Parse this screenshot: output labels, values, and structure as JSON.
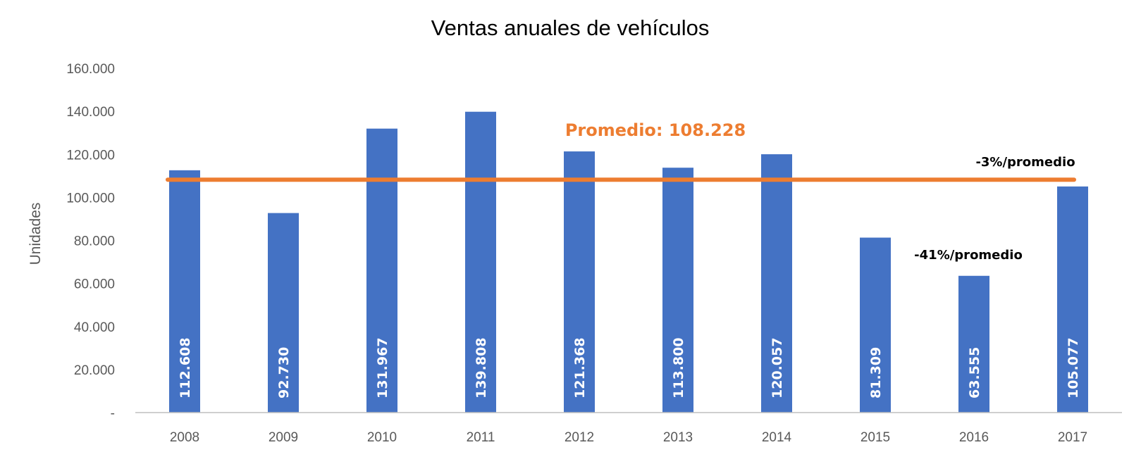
{
  "chart_data": {
    "type": "bar",
    "title": "Ventas anuales de vehículos",
    "ylabel": "Unidades",
    "xlabel": "",
    "categories": [
      "2008",
      "2009",
      "2010",
      "2011",
      "2012",
      "2013",
      "2014",
      "2015",
      "2016",
      "2017"
    ],
    "values": [
      112608,
      92730,
      131967,
      139808,
      121368,
      113800,
      120057,
      81309,
      63555,
      105077
    ],
    "value_labels": [
      "112.608",
      "92.730",
      "131.967",
      "139.808",
      "121.368",
      "113.800",
      "120.057",
      "81.309",
      "63.555",
      "105.077"
    ],
    "ylim": [
      0,
      160000
    ],
    "yticks": [
      0,
      20000,
      40000,
      60000,
      80000,
      100000,
      120000,
      140000,
      160000
    ],
    "ytick_labels": [
      "-",
      "20.000",
      "40.000",
      "60.000",
      "80.000",
      "100.000",
      "120.000",
      "140.000",
      "160.000"
    ],
    "grid": false,
    "bar_color": "#4472C4",
    "average": {
      "value": 108228,
      "label": "Promedio: 108.228",
      "color": "#ED7D31"
    },
    "annotations": [
      {
        "text": "-3%/promedio",
        "category": "2017"
      },
      {
        "text": "-41%/promedio",
        "category": "2016"
      }
    ]
  }
}
